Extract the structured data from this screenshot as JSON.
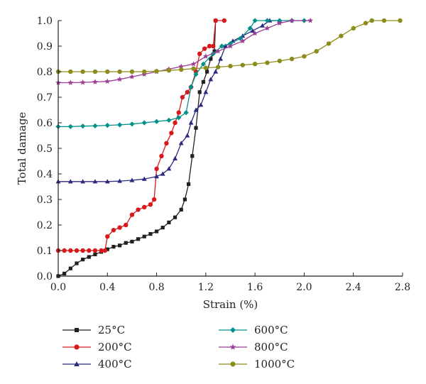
{
  "chart_data": {
    "type": "line",
    "xlabel": "Strain (%)",
    "ylabel": "Total damage",
    "xlim": [
      0,
      2.8
    ],
    "ylim": [
      0,
      1.0
    ],
    "xticks": [
      "0.0",
      "0.4",
      "0.8",
      "1.2",
      "1.6",
      "2.0",
      "2.4",
      "2.8"
    ],
    "yticks": [
      "0.0",
      "0.1",
      "0.2",
      "0.3",
      "0.4",
      "0.5",
      "0.6",
      "0.7",
      "0.8",
      "0.9",
      "1.0"
    ],
    "grid": false,
    "legend_position": "bottom",
    "series": [
      {
        "name": "25°C",
        "color": "#231f20",
        "marker": "square",
        "points": [
          [
            0.0,
            0.0
          ],
          [
            0.05,
            0.01
          ],
          [
            0.1,
            0.03
          ],
          [
            0.15,
            0.05
          ],
          [
            0.2,
            0.065
          ],
          [
            0.25,
            0.075
          ],
          [
            0.3,
            0.085
          ],
          [
            0.35,
            0.095
          ],
          [
            0.4,
            0.105
          ],
          [
            0.45,
            0.115
          ],
          [
            0.5,
            0.12
          ],
          [
            0.55,
            0.13
          ],
          [
            0.6,
            0.135
          ],
          [
            0.65,
            0.145
          ],
          [
            0.7,
            0.155
          ],
          [
            0.75,
            0.165
          ],
          [
            0.8,
            0.175
          ],
          [
            0.85,
            0.19
          ],
          [
            0.9,
            0.21
          ],
          [
            0.95,
            0.23
          ],
          [
            1.0,
            0.26
          ],
          [
            1.03,
            0.3
          ],
          [
            1.06,
            0.36
          ],
          [
            1.09,
            0.47
          ],
          [
            1.12,
            0.58
          ],
          [
            1.15,
            0.72
          ],
          [
            1.18,
            0.76
          ],
          [
            1.21,
            0.8
          ],
          [
            1.24,
            0.85
          ],
          [
            1.27,
            0.88
          ],
          [
            1.28,
            1.0
          ]
        ]
      },
      {
        "name": "200°C",
        "color": "#d7191c",
        "marker": "circle",
        "points": [
          [
            0.0,
            0.1
          ],
          [
            0.05,
            0.1
          ],
          [
            0.1,
            0.1
          ],
          [
            0.15,
            0.1
          ],
          [
            0.2,
            0.1
          ],
          [
            0.25,
            0.1
          ],
          [
            0.3,
            0.1
          ],
          [
            0.35,
            0.1
          ],
          [
            0.38,
            0.1
          ],
          [
            0.4,
            0.155
          ],
          [
            0.45,
            0.18
          ],
          [
            0.5,
            0.19
          ],
          [
            0.55,
            0.2
          ],
          [
            0.6,
            0.24
          ],
          [
            0.65,
            0.26
          ],
          [
            0.7,
            0.27
          ],
          [
            0.75,
            0.28
          ],
          [
            0.78,
            0.3
          ],
          [
            0.8,
            0.42
          ],
          [
            0.84,
            0.47
          ],
          [
            0.88,
            0.52
          ],
          [
            0.92,
            0.56
          ],
          [
            0.95,
            0.6
          ],
          [
            0.98,
            0.64
          ],
          [
            1.01,
            0.7
          ],
          [
            1.05,
            0.72
          ],
          [
            1.08,
            0.74
          ],
          [
            1.12,
            0.8
          ],
          [
            1.15,
            0.87
          ],
          [
            1.19,
            0.89
          ],
          [
            1.23,
            0.9
          ],
          [
            1.26,
            0.9
          ],
          [
            1.28,
            1.0
          ],
          [
            1.35,
            1.0
          ]
        ]
      },
      {
        "name": "400°C",
        "color": "#2b2a7e",
        "marker": "triangle",
        "points": [
          [
            0.0,
            0.37
          ],
          [
            0.1,
            0.37
          ],
          [
            0.2,
            0.37
          ],
          [
            0.3,
            0.37
          ],
          [
            0.4,
            0.37
          ],
          [
            0.5,
            0.372
          ],
          [
            0.6,
            0.375
          ],
          [
            0.7,
            0.38
          ],
          [
            0.8,
            0.39
          ],
          [
            0.85,
            0.4
          ],
          [
            0.9,
            0.42
          ],
          [
            0.95,
            0.46
          ],
          [
            1.0,
            0.52
          ],
          [
            1.05,
            0.55
          ],
          [
            1.08,
            0.6
          ],
          [
            1.12,
            0.65
          ],
          [
            1.16,
            0.67
          ],
          [
            1.2,
            0.72
          ],
          [
            1.24,
            0.77
          ],
          [
            1.28,
            0.8
          ],
          [
            1.32,
            0.85
          ],
          [
            1.36,
            0.9
          ],
          [
            1.42,
            0.92
          ],
          [
            1.5,
            0.94
          ],
          [
            1.58,
            0.96
          ],
          [
            1.66,
            0.98
          ],
          [
            1.72,
            1.0
          ],
          [
            1.8,
            1.0
          ]
        ]
      },
      {
        "name": "600°C",
        "color": "#00908c",
        "marker": "diamond",
        "points": [
          [
            0.0,
            0.585
          ],
          [
            0.1,
            0.585
          ],
          [
            0.2,
            0.587
          ],
          [
            0.3,
            0.588
          ],
          [
            0.4,
            0.59
          ],
          [
            0.5,
            0.592
          ],
          [
            0.6,
            0.595
          ],
          [
            0.7,
            0.6
          ],
          [
            0.8,
            0.605
          ],
          [
            0.9,
            0.61
          ],
          [
            0.98,
            0.62
          ],
          [
            1.04,
            0.64
          ],
          [
            1.08,
            0.74
          ],
          [
            1.12,
            0.79
          ],
          [
            1.18,
            0.83
          ],
          [
            1.26,
            0.87
          ],
          [
            1.33,
            0.9
          ],
          [
            1.4,
            0.91
          ],
          [
            1.48,
            0.93
          ],
          [
            1.56,
            0.97
          ],
          [
            1.6,
            1.0
          ],
          [
            1.7,
            1.0
          ],
          [
            1.8,
            1.0
          ],
          [
            1.9,
            1.0
          ],
          [
            2.0,
            1.0
          ]
        ]
      },
      {
        "name": "800°C",
        "color": "#9a3f93",
        "marker": "star",
        "points": [
          [
            0.0,
            0.757
          ],
          [
            0.1,
            0.757
          ],
          [
            0.2,
            0.758
          ],
          [
            0.3,
            0.76
          ],
          [
            0.4,
            0.762
          ],
          [
            0.5,
            0.77
          ],
          [
            0.6,
            0.78
          ],
          [
            0.7,
            0.79
          ],
          [
            0.8,
            0.8
          ],
          [
            0.9,
            0.81
          ],
          [
            1.0,
            0.82
          ],
          [
            1.1,
            0.83
          ],
          [
            1.2,
            0.86
          ],
          [
            1.3,
            0.88
          ],
          [
            1.4,
            0.9
          ],
          [
            1.5,
            0.92
          ],
          [
            1.6,
            0.95
          ],
          [
            1.7,
            0.97
          ],
          [
            1.8,
            0.99
          ],
          [
            1.9,
            1.0
          ],
          [
            2.05,
            1.0
          ]
        ]
      },
      {
        "name": "1000°C",
        "color": "#8c8c1a",
        "marker": "circle",
        "points": [
          [
            0.0,
            0.8
          ],
          [
            0.1,
            0.8
          ],
          [
            0.2,
            0.8
          ],
          [
            0.3,
            0.8
          ],
          [
            0.4,
            0.8
          ],
          [
            0.5,
            0.8
          ],
          [
            0.6,
            0.8
          ],
          [
            0.7,
            0.8
          ],
          [
            0.8,
            0.802
          ],
          [
            0.9,
            0.805
          ],
          [
            1.0,
            0.808
          ],
          [
            1.1,
            0.812
          ],
          [
            1.2,
            0.815
          ],
          [
            1.3,
            0.818
          ],
          [
            1.4,
            0.822
          ],
          [
            1.5,
            0.826
          ],
          [
            1.6,
            0.83
          ],
          [
            1.7,
            0.835
          ],
          [
            1.8,
            0.842
          ],
          [
            1.9,
            0.85
          ],
          [
            2.0,
            0.86
          ],
          [
            2.1,
            0.88
          ],
          [
            2.2,
            0.91
          ],
          [
            2.3,
            0.94
          ],
          [
            2.4,
            0.97
          ],
          [
            2.5,
            0.99
          ],
          [
            2.55,
            1.0
          ],
          [
            2.65,
            1.0
          ],
          [
            2.78,
            1.0
          ]
        ]
      }
    ]
  }
}
